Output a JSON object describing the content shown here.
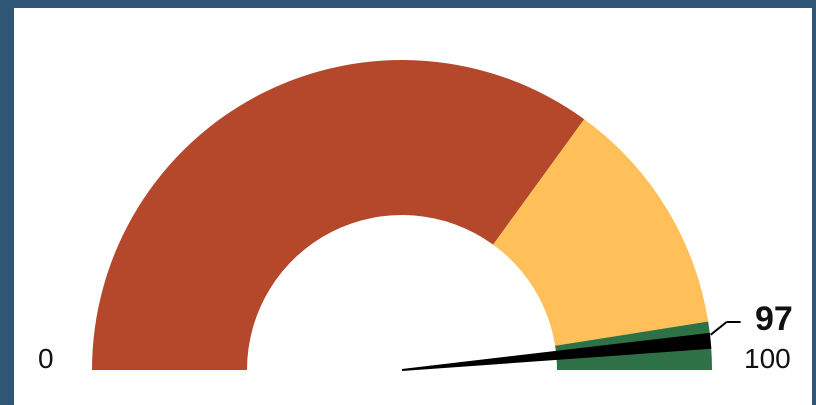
{
  "chart_data": {
    "type": "gauge",
    "min": 0,
    "max": 100,
    "value": 97,
    "min_label": "0",
    "max_label": "100",
    "value_label": "97",
    "bands": [
      {
        "from": 0,
        "to": 70,
        "color": "#b5482a"
      },
      {
        "from": 70,
        "to": 95,
        "color": "#ffc05a"
      },
      {
        "from": 95,
        "to": 100,
        "color": "#2e7146"
      }
    ],
    "needle_color": "#000000"
  },
  "colors": {
    "background": "#2f5577",
    "panel": "#ffffff"
  }
}
